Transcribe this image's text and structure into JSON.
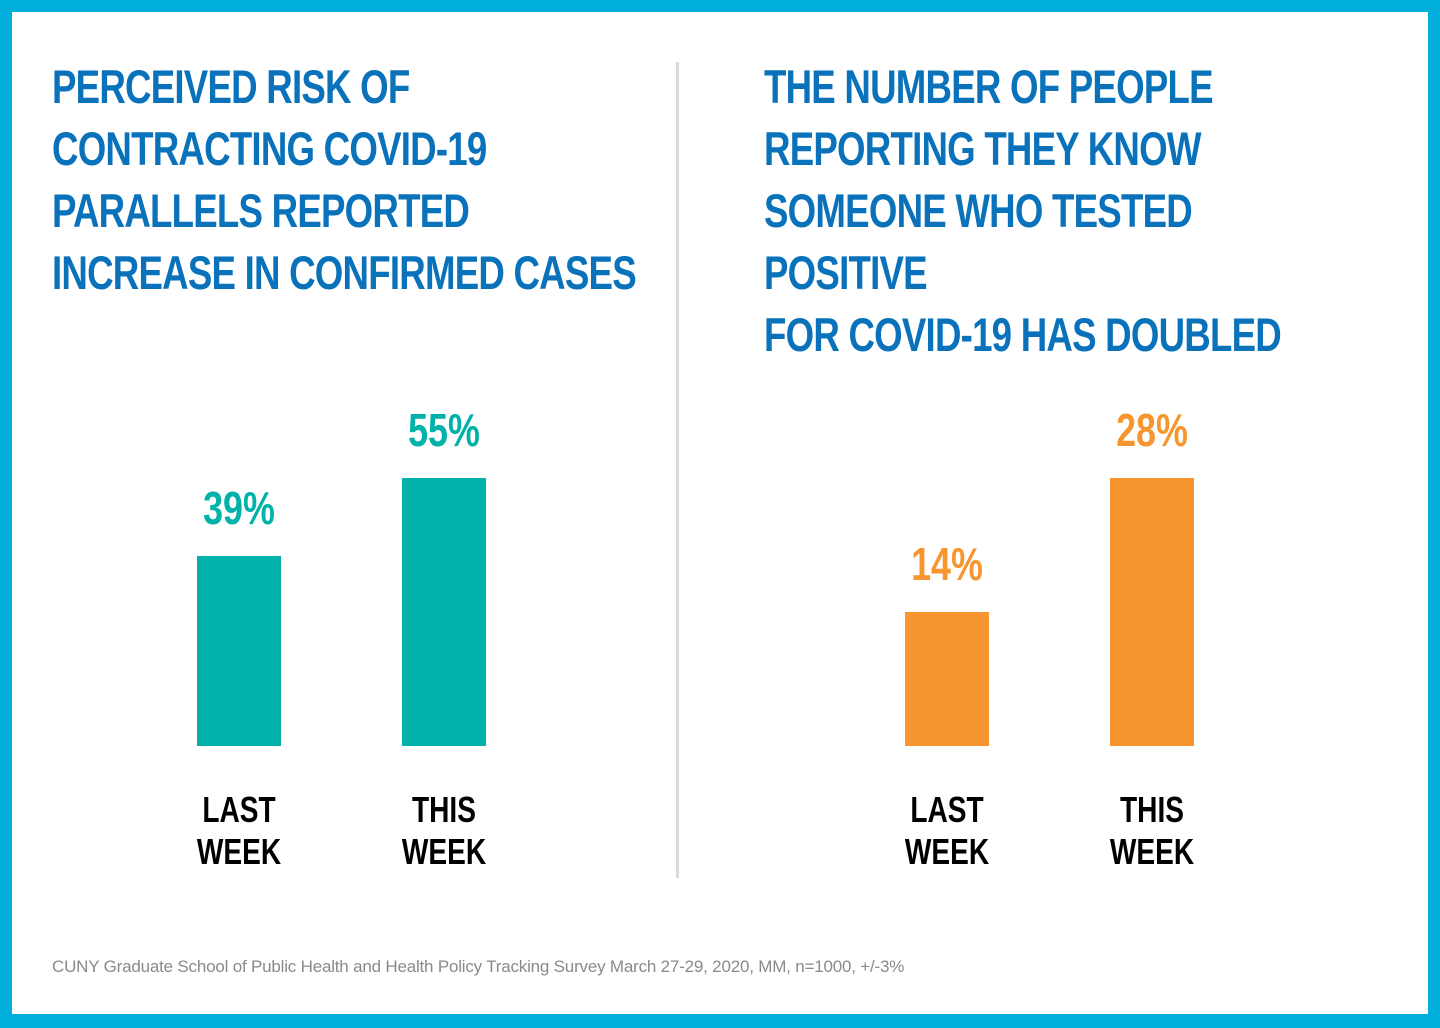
{
  "border_color": "#00AEDB",
  "title_color": "#0A72BA",
  "label_color": "#000000",
  "footnote": "CUNY Graduate School of Public Health and Health Policy Tracking Survey March 27-29, 2020, MM, n=1000, +/-3%",
  "chart_data": [
    {
      "type": "bar",
      "title": "PERCEIVED RISK OF\nCONTRACTING COVID-19\nPARALLELS REPORTED\nINCREASE IN CONFIRMED CASES",
      "categories": [
        [
          "LAST",
          "WEEK"
        ],
        [
          "THIS",
          "WEEK"
        ]
      ],
      "values": [
        39,
        55
      ],
      "data_labels": [
        "39%",
        "55%"
      ],
      "unit": "%",
      "color": "#00B2A9",
      "xlabel": "",
      "ylabel": "",
      "ylim": [
        0,
        55
      ],
      "grid": false,
      "axes_visible": false
    },
    {
      "type": "bar",
      "title": "THE NUMBER OF PEOPLE\nREPORTING THEY KNOW\nSOMEONE WHO TESTED POSITIVE\nFOR COVID-19 HAS DOUBLED",
      "categories": [
        [
          "LAST",
          "WEEK"
        ],
        [
          "THIS",
          "WEEK"
        ]
      ],
      "values": [
        14,
        28
      ],
      "data_labels": [
        "14%",
        "28%"
      ],
      "unit": "%",
      "color": "#F7962E",
      "xlabel": "",
      "ylabel": "",
      "ylim": [
        0,
        28
      ],
      "grid": false,
      "axes_visible": false
    }
  ]
}
